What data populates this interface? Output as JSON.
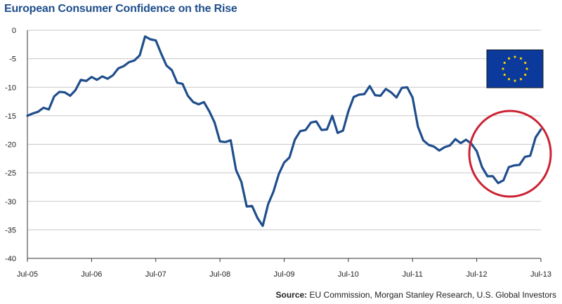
{
  "colors": {
    "title": "#1f4e8c",
    "line": "#1f4e8c",
    "grid": "#c8c8c8",
    "highlight": "#cc2233",
    "flag_blue": "#0b3a9c",
    "flag_stars": "#f4d000"
  },
  "chart_data": {
    "type": "line",
    "title": "European Consumer Confidence on the Rise",
    "xlabel": "",
    "ylabel": "",
    "ylim": [
      -40,
      0
    ],
    "yticks": [
      0,
      -5,
      -10,
      -15,
      -20,
      -25,
      -30,
      -35,
      -40
    ],
    "xtick_labels": [
      "Jul-05",
      "Jul-06",
      "Jul-07",
      "Jul-08",
      "Jul-09",
      "Jul-10",
      "Jul-11",
      "Jul-12",
      "Jul-13"
    ],
    "xtick_months": [
      0,
      12,
      24,
      36,
      48,
      60,
      72,
      84,
      96
    ],
    "grid": true,
    "annotations": [
      "EU flag",
      "red circle highlighting recent rise"
    ],
    "series": [
      {
        "name": "European Consumer Confidence",
        "x_months": [
          0,
          1,
          2,
          3,
          4,
          5,
          6,
          7,
          8,
          9,
          10,
          11,
          12,
          13,
          14,
          15,
          16,
          17,
          18,
          19,
          20,
          21,
          22,
          23,
          24,
          25,
          26,
          27,
          28,
          29,
          30,
          31,
          32,
          33,
          34,
          35,
          36,
          37,
          38,
          39,
          40,
          41,
          42,
          43,
          44,
          45,
          46,
          47,
          48,
          49,
          50,
          51,
          52,
          53,
          54,
          55,
          56,
          57,
          58,
          59,
          60,
          61,
          62,
          63,
          64,
          65,
          66,
          67,
          68,
          69,
          70,
          71,
          72,
          73,
          74,
          75,
          76,
          77,
          78,
          79,
          80,
          81,
          82,
          83,
          84,
          85,
          86,
          87,
          88,
          89,
          90,
          91,
          92,
          93,
          94,
          95,
          96
        ],
        "values": [
          -15.0,
          -14.6,
          -14.3,
          -13.6,
          -13.9,
          -11.6,
          -10.8,
          -10.9,
          -11.5,
          -10.5,
          -8.7,
          -8.9,
          -8.2,
          -8.7,
          -8.1,
          -8.5,
          -7.9,
          -6.7,
          -6.3,
          -5.6,
          -5.3,
          -4.4,
          -1.1,
          -1.6,
          -1.8,
          -4.1,
          -6.2,
          -7.0,
          -9.2,
          -9.4,
          -11.5,
          -12.6,
          -13.0,
          -12.6,
          -14.2,
          -16.2,
          -19.5,
          -19.6,
          -19.3,
          -24.5,
          -26.6,
          -30.9,
          -30.8,
          -32.9,
          -34.3,
          -30.5,
          -28.3,
          -25.2,
          -23.2,
          -22.3,
          -19.2,
          -17.7,
          -17.5,
          -16.2,
          -16.0,
          -17.5,
          -17.4,
          -15.0,
          -18.0,
          -17.6,
          -14.2,
          -11.7,
          -11.3,
          -11.2,
          -9.8,
          -11.4,
          -11.5,
          -10.3,
          -10.9,
          -11.8,
          -10.1,
          -10.0,
          -11.8,
          -16.9,
          -19.3,
          -20.1,
          -20.4,
          -21.1,
          -20.5,
          -20.2,
          -19.1,
          -19.8,
          -19.2,
          -19.9,
          -21.2,
          -24.0,
          -25.6,
          -25.6,
          -26.8,
          -26.3,
          -24.0,
          -23.7,
          -23.6,
          -22.2,
          -22.0,
          -18.8,
          -17.4
        ]
      }
    ]
  },
  "source": {
    "label": "Source:",
    "text": "EU Commission, Morgan Stanley Research, U.S. Global Investors"
  }
}
